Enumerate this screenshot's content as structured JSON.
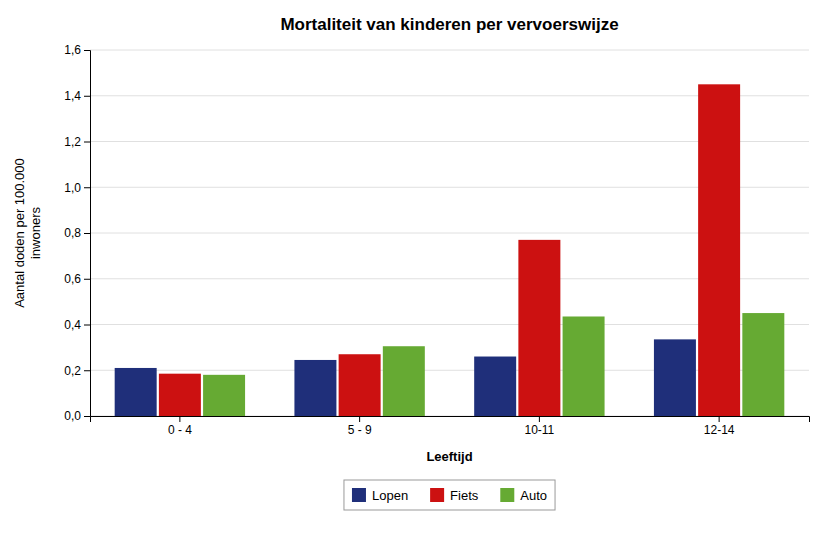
{
  "chart_data": {
    "type": "bar",
    "title": "Mortaliteit van kinderen per vervoerswijze",
    "xlabel": "Leeftijd",
    "ylabel": "Aantal doden per 100.000\ninwoners",
    "categories": [
      "0 - 4",
      "5 - 9",
      "10-11",
      "12-14"
    ],
    "series": [
      {
        "name": "Lopen",
        "color": "#1f2f7a",
        "values": [
          0.21,
          0.245,
          0.26,
          0.335
        ]
      },
      {
        "name": "Fiets",
        "color": "#cc1111",
        "values": [
          0.185,
          0.27,
          0.77,
          1.45
        ]
      },
      {
        "name": "Auto",
        "color": "#66aa33",
        "values": [
          0.18,
          0.305,
          0.435,
          0.45
        ]
      }
    ],
    "ylim": [
      0,
      1.6
    ],
    "yticks": [
      {
        "value": 0.0,
        "label": "0,0"
      },
      {
        "value": 0.2,
        "label": "0,2"
      },
      {
        "value": 0.4,
        "label": "0,4"
      },
      {
        "value": 0.6,
        "label": "0,6"
      },
      {
        "value": 0.8,
        "label": "0,8"
      },
      {
        "value": 1.0,
        "label": "1,0"
      },
      {
        "value": 1.2,
        "label": "1,2"
      },
      {
        "value": 1.4,
        "label": "1,4"
      },
      {
        "value": 1.6,
        "label": "1,6"
      }
    ],
    "grid": true,
    "legend": "bottom"
  }
}
